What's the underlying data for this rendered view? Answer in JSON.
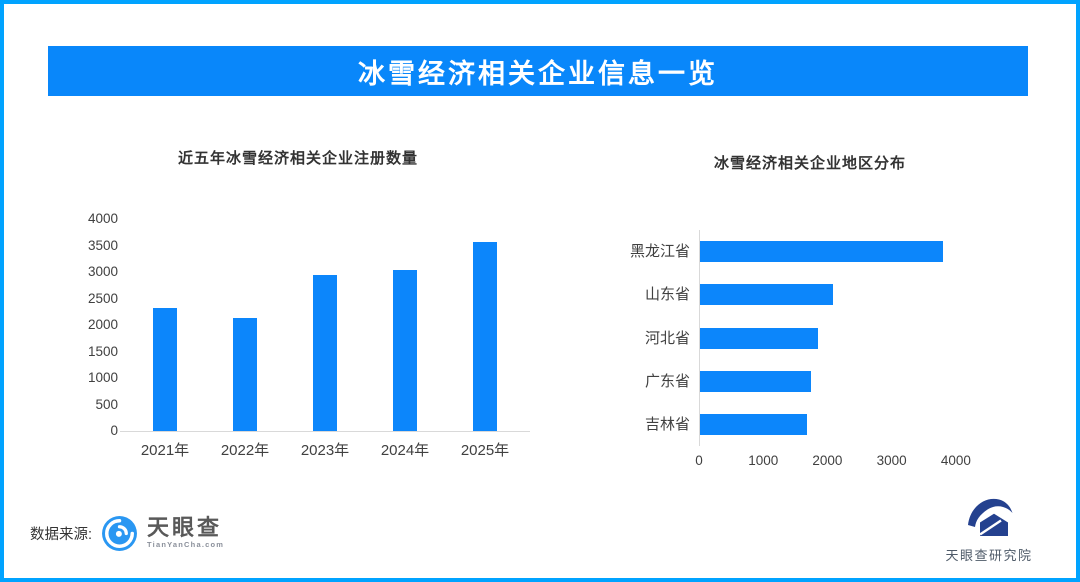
{
  "page": {
    "border_color": "#00a3ff",
    "background": "#ffffff"
  },
  "header": {
    "title": "冰雪经济相关企业信息一览",
    "bg_color": "#0987fa",
    "text_color": "#ffffff"
  },
  "chart_data": [
    {
      "type": "bar",
      "orientation": "vertical",
      "title": "近五年冰雪经济相关企业注册数量",
      "categories": [
        "2021年",
        "2022年",
        "2023年",
        "2024年",
        "2025年"
      ],
      "values": [
        2320,
        2130,
        2950,
        3040,
        3570
      ],
      "ylim": [
        0,
        4000
      ],
      "yticks": [
        0,
        500,
        1000,
        1500,
        2000,
        2500,
        3000,
        3500,
        4000
      ],
      "bar_color": "#0c86fb",
      "axis_color": "#d9d9d9",
      "grid": false,
      "legend": "none"
    },
    {
      "type": "bar",
      "orientation": "horizontal",
      "title": "冰雪经济相关企业地区分布",
      "categories": [
        "黑龙江省",
        "山东省",
        "河北省",
        "广东省",
        "吉林省"
      ],
      "values": [
        3790,
        2070,
        1840,
        1730,
        1660
      ],
      "xlim": [
        0,
        4500
      ],
      "xticks": [
        0,
        1000,
        2000,
        3000,
        4000
      ],
      "bar_color": "#0c86fb",
      "axis_color": "#d9d9d9",
      "grid": false,
      "legend": "none"
    }
  ],
  "footer": {
    "source_label": "数据来源:",
    "tianyancha_logo": {
      "name": "天眼查",
      "domain": "TianYanCha.com",
      "icon": "tianyancha-swirl-icon",
      "icon_color": "#2a97f2",
      "text_color": "#595959"
    },
    "research_logo": {
      "name": "天眼查研究院",
      "icon": "tianyancha-research-icon",
      "icon_color": "#24418f",
      "text_color": "#4e5a68"
    }
  }
}
